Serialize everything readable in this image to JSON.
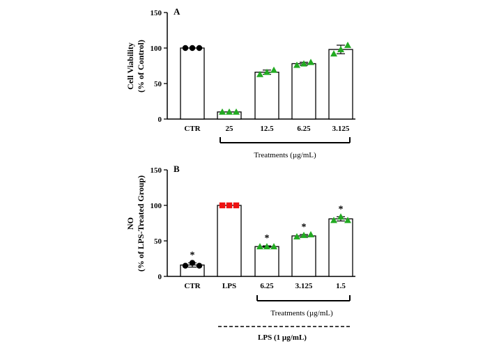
{
  "chart_data": [
    {
      "type": "bar",
      "panel_letter": "A",
      "ylabel_line1": "Cell Viability",
      "ylabel_line2": "(% of Control)",
      "ylim": [
        0,
        150
      ],
      "yticks": [
        0,
        50,
        100,
        150
      ],
      "categories": [
        "CTR",
        "25",
        "12.5",
        "6.25",
        "3.125"
      ],
      "values": [
        100,
        10,
        66,
        78,
        98
      ],
      "errors": [
        0,
        0,
        3,
        2,
        6
      ],
      "points": [
        [
          100,
          100,
          100
        ],
        [
          10,
          10,
          10
        ],
        [
          63,
          66,
          69
        ],
        [
          76,
          78,
          80
        ],
        [
          92,
          98,
          104
        ]
      ],
      "point_markers": [
        "circle",
        "triangle",
        "triangle",
        "triangle",
        "triangle"
      ],
      "point_colors": [
        "#000000",
        "#22aa22",
        "#22aa22",
        "#22aa22",
        "#22aa22"
      ],
      "significance": [
        "",
        "",
        "",
        "",
        ""
      ],
      "bracket_label": "Treatments (µg/mL)",
      "bracket_span": [
        1,
        4
      ],
      "grid": false
    },
    {
      "type": "bar",
      "panel_letter": "B",
      "ylabel_line1": "NO",
      "ylabel_line2": "(% of LPS-Treated Group)",
      "ylim": [
        0,
        150
      ],
      "yticks": [
        0,
        50,
        100,
        150
      ],
      "categories": [
        "CTR",
        "LPS",
        "6.25",
        "3.125",
        "1.5"
      ],
      "values": [
        16,
        100,
        42,
        57,
        81
      ],
      "errors": [
        3,
        0,
        1,
        2,
        3
      ],
      "points": [
        [
          15,
          19,
          15
        ],
        [
          100,
          100,
          100
        ],
        [
          42,
          42,
          42
        ],
        [
          56,
          58,
          59
        ],
        [
          79,
          84,
          79
        ]
      ],
      "point_markers": [
        "circle",
        "square",
        "triangle",
        "triangle",
        "triangle"
      ],
      "point_colors": [
        "#000000",
        "#ee1111",
        "#22aa22",
        "#22aa22",
        "#22aa22"
      ],
      "significance": [
        "*",
        "",
        "*",
        "*",
        "*"
      ],
      "bracket_label": "Treatments (µg/mL)",
      "bracket_span": [
        2,
        4
      ],
      "lps_label": "LPS (1 µg/mL)",
      "grid": false
    }
  ]
}
